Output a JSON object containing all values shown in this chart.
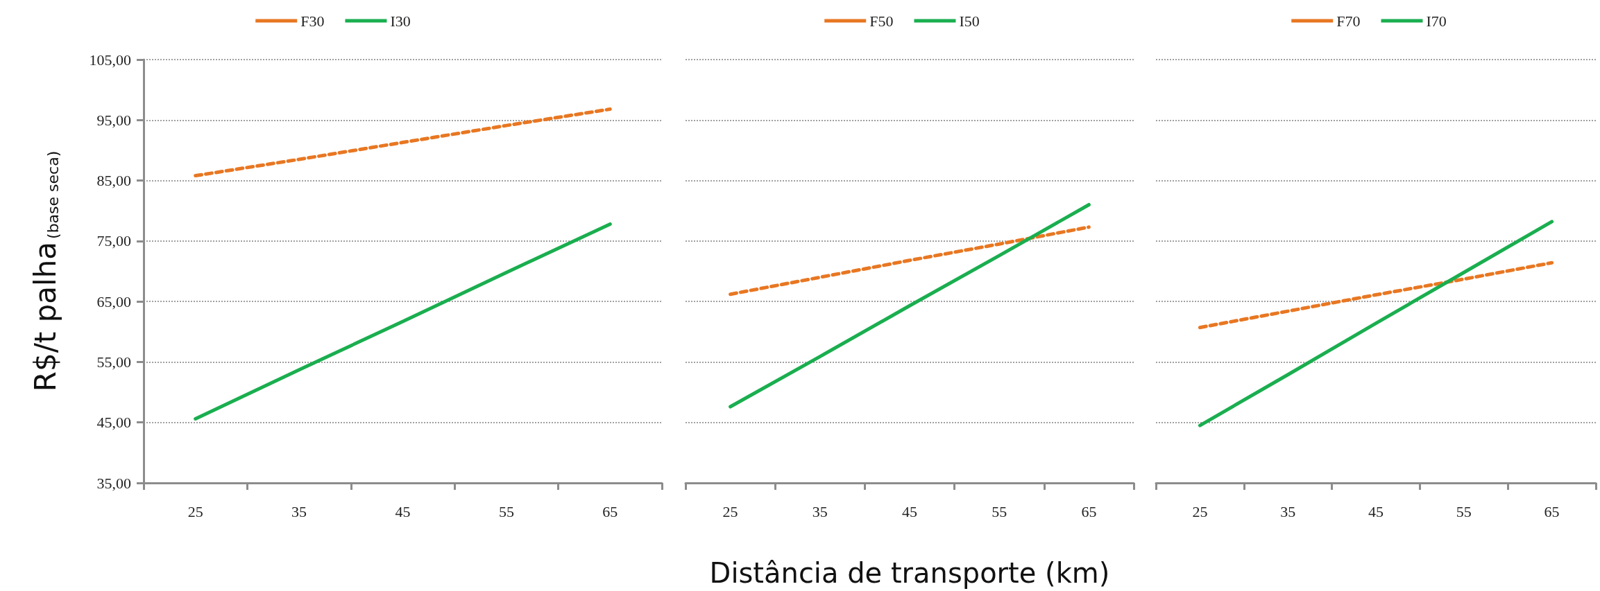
{
  "chart_data": [
    {
      "type": "line",
      "categories": [
        "25",
        "35",
        "45",
        "55",
        "65"
      ],
      "ylabel": "R$/t palha$_{(base seca)}$",
      "ylim": [
        35,
        105
      ],
      "yticks": [
        {
          "value": 35,
          "label": "35,00"
        },
        {
          "value": 45,
          "label": "45,00"
        },
        {
          "value": 55,
          "label": "55,00"
        },
        {
          "value": 65,
          "label": "65,00"
        },
        {
          "value": 75,
          "label": "75,00"
        },
        {
          "value": 85,
          "label": "85,00"
        },
        {
          "value": 95,
          "label": "95,00"
        },
        {
          "value": 105,
          "label": "105,00"
        }
      ],
      "grid": "y",
      "legend": "top",
      "marker": "none",
      "series": [
        {
          "name": "F30",
          "color": "#e87722",
          "line_style": "dashed",
          "values": [
            85.8,
            88.5,
            91.3,
            94.1,
            96.8
          ]
        },
        {
          "name": "I30",
          "color": "#1aae4f",
          "line_style": "solid",
          "values": [
            45.6,
            53.7,
            61.7,
            69.8,
            77.8
          ]
        }
      ]
    },
    {
      "type": "line",
      "categories": [
        "25",
        "35",
        "45",
        "55",
        "65"
      ],
      "xlabel": "Distância de transporte (km)",
      "ylim": [
        35,
        105
      ],
      "yticks": [
        35,
        45,
        55,
        65,
        75,
        85,
        95,
        105
      ],
      "tick_labels": "x",
      "grid": "y",
      "legend": "top",
      "marker": "none",
      "series": [
        {
          "name": "F50",
          "color": "#e87722",
          "line_style": "dashed",
          "values": [
            66.2,
            69.0,
            71.8,
            74.5,
            77.3
          ]
        },
        {
          "name": "I50",
          "color": "#1aae4f",
          "line_style": "solid",
          "values": [
            47.6,
            55.9,
            64.3,
            72.6,
            81.0
          ]
        }
      ]
    },
    {
      "type": "line",
      "categories": [
        "25",
        "35",
        "45",
        "55",
        "65"
      ],
      "ylim": [
        35,
        105
      ],
      "yticks": [
        35,
        45,
        55,
        65,
        75,
        85,
        95,
        105
      ],
      "tick_labels": "x",
      "grid": "y",
      "legend": "top",
      "marker": "none",
      "series": [
        {
          "name": "F70",
          "color": "#e87722",
          "line_style": "dashed",
          "values": [
            60.7,
            63.4,
            66.1,
            68.7,
            71.4
          ]
        },
        {
          "name": "I70",
          "color": "#1aae4f",
          "line_style": "solid",
          "values": [
            44.5,
            52.9,
            61.4,
            69.8,
            78.2
          ]
        }
      ]
    }
  ]
}
